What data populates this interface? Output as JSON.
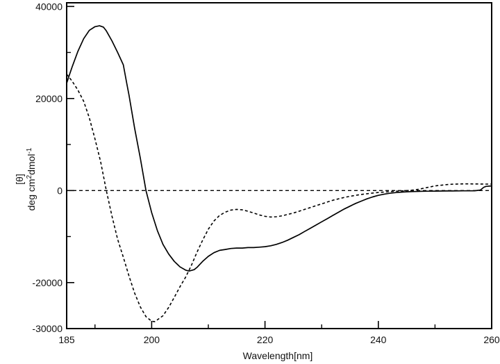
{
  "figure": {
    "background": "#ffffff",
    "axis_color": "#000000",
    "curve_color": "#000000"
  },
  "axis_titles": {
    "x": "Wavelength[nm]",
    "y_line1": "[θ]",
    "y_deg_cm": "deg cm",
    "y_sup2": "2",
    "y_dmol": "dmol",
    "y_sup_minus1": "-1"
  },
  "chart_data": {
    "type": "line",
    "title": "",
    "xlabel": "Wavelength[nm]",
    "ylabel": "[θ] deg cm2 dmol-1",
    "xlim": [
      185,
      260
    ],
    "ylim": [
      -30000,
      40800
    ],
    "grid": false,
    "zero_line": true,
    "x_major_ticks": [
      200,
      220,
      240
    ],
    "x_minor_ticks": [
      190,
      210,
      230,
      250
    ],
    "y_major_ticks": [
      40000,
      20000,
      0,
      -20000
    ],
    "y_minor_ticks": [
      30000,
      10000,
      -10000
    ],
    "x_tick_labels": [
      {
        "v": 185,
        "t": "185"
      },
      {
        "v": 200,
        "t": "200"
      },
      {
        "v": 220,
        "t": "220"
      },
      {
        "v": 240,
        "t": "240"
      },
      {
        "v": 260,
        "t": "260"
      }
    ],
    "y_tick_labels": [
      {
        "v": 40000,
        "t": "40000"
      },
      {
        "v": 20000,
        "t": "20000"
      },
      {
        "v": 0,
        "t": "0"
      },
      {
        "v": -20000,
        "t": "-20000"
      },
      {
        "v": -30000,
        "t": "-30000"
      }
    ],
    "series": [
      {
        "name": "solid-spectrum",
        "style": "solid",
        "points": [
          [
            185,
            23300
          ],
          [
            185.5,
            25200
          ],
          [
            186,
            27000
          ],
          [
            187,
            30300
          ],
          [
            188,
            33000
          ],
          [
            189,
            34800
          ],
          [
            190,
            35600
          ],
          [
            190.8,
            35800
          ],
          [
            191.5,
            35500
          ],
          [
            192,
            34700
          ],
          [
            193,
            32500
          ],
          [
            194,
            30000
          ],
          [
            195,
            27300
          ],
          [
            195.6,
            23300
          ],
          [
            196,
            20700
          ],
          [
            197,
            13500
          ],
          [
            198,
            7000
          ],
          [
            199,
            0
          ],
          [
            200,
            -4800
          ],
          [
            201,
            -8700
          ],
          [
            202,
            -11700
          ],
          [
            203,
            -13800
          ],
          [
            204,
            -15400
          ],
          [
            205,
            -16600
          ],
          [
            206,
            -17300
          ],
          [
            206.6,
            -17500
          ],
          [
            207.5,
            -17200
          ],
          [
            208,
            -16700
          ],
          [
            209,
            -15400
          ],
          [
            210,
            -14300
          ],
          [
            211,
            -13500
          ],
          [
            212,
            -13000
          ],
          [
            213,
            -12800
          ],
          [
            214,
            -12600
          ],
          [
            215,
            -12500
          ],
          [
            216,
            -12500
          ],
          [
            217,
            -12400
          ],
          [
            218,
            -12400
          ],
          [
            219,
            -12300
          ],
          [
            220,
            -12200
          ],
          [
            221,
            -12000
          ],
          [
            222,
            -11700
          ],
          [
            223,
            -11300
          ],
          [
            224,
            -10800
          ],
          [
            225,
            -10200
          ],
          [
            226,
            -9600
          ],
          [
            227,
            -8900
          ],
          [
            228,
            -8200
          ],
          [
            229,
            -7500
          ],
          [
            230,
            -6800
          ],
          [
            231,
            -6100
          ],
          [
            232,
            -5400
          ],
          [
            233,
            -4700
          ],
          [
            234,
            -4000
          ],
          [
            235,
            -3400
          ],
          [
            236,
            -2800
          ],
          [
            237,
            -2300
          ],
          [
            238,
            -1800
          ],
          [
            239,
            -1400
          ],
          [
            240,
            -1050
          ],
          [
            241,
            -800
          ],
          [
            242,
            -600
          ],
          [
            243,
            -450
          ],
          [
            244,
            -350
          ],
          [
            245,
            -280
          ],
          [
            246,
            -230
          ],
          [
            247,
            -190
          ],
          [
            248,
            -160
          ],
          [
            249,
            -140
          ],
          [
            250,
            -120
          ],
          [
            251,
            -110
          ],
          [
            252,
            -100
          ],
          [
            253,
            -90
          ],
          [
            254,
            -80
          ],
          [
            255,
            -70
          ],
          [
            256,
            -60
          ],
          [
            257,
            -50
          ],
          [
            258,
            100
          ],
          [
            258.6,
            700
          ],
          [
            259,
            900
          ],
          [
            260,
            1000
          ]
        ]
      },
      {
        "name": "dashed-spectrum",
        "style": "dashed",
        "points": [
          [
            185,
            25300
          ],
          [
            186,
            23700
          ],
          [
            187,
            21800
          ],
          [
            188,
            19400
          ],
          [
            189,
            15800
          ],
          [
            190,
            11200
          ],
          [
            191,
            6200
          ],
          [
            192,
            0
          ],
          [
            193,
            -5600
          ],
          [
            194,
            -10600
          ],
          [
            195,
            -14500
          ],
          [
            196,
            -18600
          ],
          [
            197,
            -22300
          ],
          [
            198,
            -25300
          ],
          [
            199,
            -27400
          ],
          [
            200,
            -28400
          ],
          [
            200.5,
            -28500
          ],
          [
            201,
            -28100
          ],
          [
            202,
            -27200
          ],
          [
            203,
            -25400
          ],
          [
            204,
            -23200
          ],
          [
            205,
            -20900
          ],
          [
            206,
            -18800
          ],
          [
            207,
            -16300
          ],
          [
            208,
            -13400
          ],
          [
            209,
            -10800
          ],
          [
            210,
            -8400
          ],
          [
            211,
            -6600
          ],
          [
            212,
            -5400
          ],
          [
            213,
            -4700
          ],
          [
            214,
            -4250
          ],
          [
            215,
            -4100
          ],
          [
            216,
            -4200
          ],
          [
            217,
            -4500
          ],
          [
            218,
            -4900
          ],
          [
            219,
            -5300
          ],
          [
            220,
            -5600
          ],
          [
            221,
            -5750
          ],
          [
            222,
            -5700
          ],
          [
            223,
            -5500
          ],
          [
            224,
            -5200
          ],
          [
            225,
            -4900
          ],
          [
            226,
            -4500
          ],
          [
            227,
            -4100
          ],
          [
            228,
            -3700
          ],
          [
            229,
            -3300
          ],
          [
            230,
            -2900
          ],
          [
            231,
            -2500
          ],
          [
            232,
            -2100
          ],
          [
            233,
            -1800
          ],
          [
            234,
            -1500
          ],
          [
            235,
            -1250
          ],
          [
            236,
            -1050
          ],
          [
            237,
            -850
          ],
          [
            238,
            -700
          ],
          [
            239,
            -550
          ],
          [
            240,
            -430
          ],
          [
            241,
            -330
          ],
          [
            242,
            -240
          ],
          [
            243,
            -160
          ],
          [
            244,
            -90
          ],
          [
            245,
            -20
          ],
          [
            246,
            80
          ],
          [
            247,
            250
          ],
          [
            248,
            500
          ],
          [
            249,
            750
          ],
          [
            250,
            1000
          ],
          [
            251,
            1150
          ],
          [
            252,
            1280
          ],
          [
            253,
            1370
          ],
          [
            254,
            1420
          ],
          [
            255,
            1450
          ],
          [
            256,
            1450
          ],
          [
            257,
            1430
          ],
          [
            258,
            1410
          ],
          [
            259,
            1400
          ],
          [
            260,
            1400
          ]
        ]
      }
    ]
  }
}
